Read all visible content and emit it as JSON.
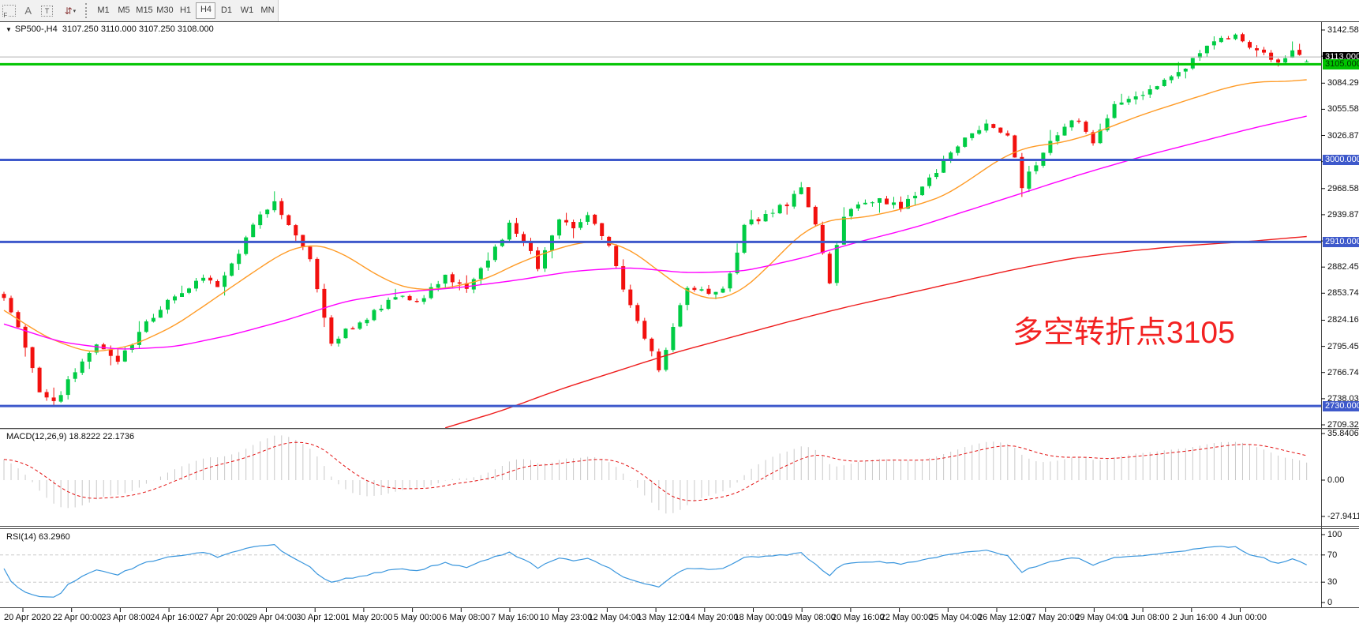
{
  "toolbar": {
    "tools": [
      {
        "name": "fibo-tool",
        "glyph": "F"
      },
      {
        "name": "text-tool",
        "glyph": "A"
      },
      {
        "name": "text-label-tool",
        "glyph": "T"
      },
      {
        "name": "arrows-tool",
        "glyph": "⇵"
      }
    ],
    "timeframes": [
      "M1",
      "M5",
      "M15",
      "M30",
      "H1",
      "H4",
      "D1",
      "W1",
      "MN"
    ],
    "active_timeframe": "H4"
  },
  "header": {
    "symbol": "SP500-,H4",
    "open": "3107.250",
    "high": "3110.000",
    "low": "3107.250",
    "close": "3108.000"
  },
  "annotation": {
    "text": "多空转折点3105",
    "color": "#f32222"
  },
  "price_axis": {
    "labels": [
      "3142.580",
      "3113.870",
      "3084.290",
      "3055.580",
      "3026.870",
      "2998.160",
      "2968.580",
      "2939.870",
      "2911.160",
      "2882.450",
      "2853.740",
      "2824.160",
      "2795.450",
      "2766.740",
      "2738.030",
      "2709.320"
    ],
    "top_label_value": 3142.58,
    "bottom_label_value": 2709.32
  },
  "hlines": [
    {
      "name": "bid-line",
      "price": 3113.0,
      "label": "3113.000",
      "line_color": "#b3b3b3",
      "line_width": 1,
      "tag_bg": "#000000",
      "tag_fg": "#ffffff"
    },
    {
      "name": "green-level",
      "price": 3105.0,
      "label": "3105.000",
      "line_color": "#00c400",
      "line_width": 3,
      "tag_bg": "#00c400",
      "tag_fg": "#003300"
    },
    {
      "name": "blue-level-3000",
      "price": 3000.0,
      "label": "3000.000",
      "line_color": "#3e59cb",
      "line_width": 3,
      "tag_bg": "#3e59cb",
      "tag_fg": "#ffffff"
    },
    {
      "name": "blue-level-2910",
      "price": 2910.0,
      "label": "2910.000",
      "line_color": "#3e59cb",
      "line_width": 3,
      "tag_bg": "#3e59cb",
      "tag_fg": "#ffffff"
    },
    {
      "name": "blue-level-2730",
      "price": 2730.0,
      "label": "2730.000",
      "line_color": "#3e59cb",
      "line_width": 3,
      "tag_bg": "#3e59cb",
      "tag_fg": "#ffffff"
    }
  ],
  "macd_panel": {
    "title": "MACD(12,26,9)",
    "values": "18.8222 22.1736",
    "axis_labels": [
      "35.8406",
      "0.00",
      "-27.9411"
    ],
    "ylim": [
      -27.9411,
      35.8406
    ],
    "hist_color": "#c9c9c9",
    "signal_color": "#e31212"
  },
  "rsi_panel": {
    "title": "RSI(14)",
    "value": "63.2960",
    "axis_labels": [
      "100",
      "70",
      "30",
      "0"
    ],
    "levels": [
      70,
      30
    ],
    "ylim": [
      0,
      100
    ],
    "line_color": "#3a96dd",
    "level_color": "#c8c8c8"
  },
  "time_axis": {
    "labels": [
      "20 Apr 2020",
      "22 Apr 00:00",
      "23 Apr 08:00",
      "24 Apr 16:00",
      "27 Apr 20:00",
      "29 Apr 04:00",
      "30 Apr 12:00",
      "1 May 20:00",
      "5 May 00:00",
      "6 May 08:00",
      "7 May 16:00",
      "10 May 23:00",
      "12 May 04:00",
      "13 May 12:00",
      "14 May 20:00",
      "18 May 00:00",
      "19 May 08:00",
      "20 May 16:00",
      "22 May 00:00",
      "25 May 04:00",
      "26 May 12:00",
      "27 May 20:00",
      "29 May 04:00",
      "1 Jun 08:00",
      "2 Jun 16:00",
      "4 Jun 00:00"
    ]
  },
  "chart_data": {
    "type": "candlestick",
    "symbol": "SP500-",
    "timeframe": "H4",
    "bars": 184,
    "ylim": [
      2706,
      3151
    ],
    "last_bar": {
      "open": 3107.25,
      "high": 3110.0,
      "low": 3107.25,
      "close": 3108.0
    },
    "up_color": "#00cc44",
    "down_color": "#f2100e",
    "close_keypoints": [
      [
        0,
        2848
      ],
      [
        2,
        2815
      ],
      [
        5,
        2745
      ],
      [
        7,
        2733
      ],
      [
        10,
        2770
      ],
      [
        13,
        2798
      ],
      [
        16,
        2778
      ],
      [
        20,
        2822
      ],
      [
        24,
        2852
      ],
      [
        28,
        2872
      ],
      [
        30,
        2858
      ],
      [
        33,
        2900
      ],
      [
        36,
        2940
      ],
      [
        38,
        2952
      ],
      [
        40,
        2930
      ],
      [
        43,
        2890
      ],
      [
        46,
        2800
      ],
      [
        48,
        2812
      ],
      [
        51,
        2826
      ],
      [
        55,
        2852
      ],
      [
        58,
        2842
      ],
      [
        62,
        2872
      ],
      [
        65,
        2858
      ],
      [
        68,
        2888
      ],
      [
        71,
        2928
      ],
      [
        73,
        2912
      ],
      [
        75,
        2882
      ],
      [
        78,
        2938
      ],
      [
        80,
        2922
      ],
      [
        82,
        2938
      ],
      [
        85,
        2905
      ],
      [
        88,
        2838
      ],
      [
        90,
        2805
      ],
      [
        92,
        2772
      ],
      [
        94,
        2818
      ],
      [
        96,
        2862
      ],
      [
        98,
        2858
      ],
      [
        100,
        2852
      ],
      [
        102,
        2872
      ],
      [
        104,
        2928
      ],
      [
        107,
        2940
      ],
      [
        110,
        2952
      ],
      [
        112,
        2968
      ],
      [
        114,
        2930
      ],
      [
        116,
        2868
      ],
      [
        118,
        2940
      ],
      [
        121,
        2952
      ],
      [
        123,
        2958
      ],
      [
        126,
        2946
      ],
      [
        128,
        2962
      ],
      [
        130,
        2978
      ],
      [
        133,
        3008
      ],
      [
        136,
        3030
      ],
      [
        138,
        3042
      ],
      [
        141,
        3028
      ],
      [
        143,
        2972
      ],
      [
        146,
        3010
      ],
      [
        149,
        3038
      ],
      [
        151,
        3045
      ],
      [
        153,
        3020
      ],
      [
        156,
        3058
      ],
      [
        159,
        3070
      ],
      [
        162,
        3082
      ],
      [
        164,
        3092
      ],
      [
        166,
        3102
      ],
      [
        168,
        3120
      ],
      [
        171,
        3132
      ],
      [
        173,
        3138
      ],
      [
        175,
        3122
      ],
      [
        177,
        3116
      ],
      [
        179,
        3110
      ],
      [
        181,
        3118
      ],
      [
        183,
        3108
      ]
    ],
    "overlays": [
      {
        "name": "ma-fast",
        "color": "#ff9b26",
        "keypoints": [
          [
            0,
            2835
          ],
          [
            6,
            2805
          ],
          [
            12,
            2788
          ],
          [
            18,
            2796
          ],
          [
            24,
            2818
          ],
          [
            30,
            2850
          ],
          [
            36,
            2882
          ],
          [
            40,
            2902
          ],
          [
            44,
            2908
          ],
          [
            48,
            2896
          ],
          [
            52,
            2875
          ],
          [
            56,
            2860
          ],
          [
            60,
            2857
          ],
          [
            64,
            2862
          ],
          [
            68,
            2870
          ],
          [
            72,
            2886
          ],
          [
            76,
            2898
          ],
          [
            80,
            2908
          ],
          [
            84,
            2912
          ],
          [
            88,
            2902
          ],
          [
            92,
            2878
          ],
          [
            96,
            2855
          ],
          [
            100,
            2845
          ],
          [
            104,
            2858
          ],
          [
            108,
            2888
          ],
          [
            112,
            2920
          ],
          [
            116,
            2935
          ],
          [
            120,
            2936
          ],
          [
            124,
            2942
          ],
          [
            128,
            2950
          ],
          [
            132,
            2960
          ],
          [
            136,
            2980
          ],
          [
            140,
            3002
          ],
          [
            144,
            3015
          ],
          [
            148,
            3018
          ],
          [
            152,
            3026
          ],
          [
            156,
            3038
          ],
          [
            160,
            3050
          ],
          [
            164,
            3060
          ],
          [
            168,
            3070
          ],
          [
            172,
            3080
          ],
          [
            176,
            3086
          ],
          [
            180,
            3086
          ],
          [
            183,
            3088
          ]
        ]
      },
      {
        "name": "ma-mid",
        "color": "#ff00ff",
        "keypoints": [
          [
            0,
            2820
          ],
          [
            8,
            2800
          ],
          [
            16,
            2792
          ],
          [
            24,
            2795
          ],
          [
            32,
            2808
          ],
          [
            40,
            2825
          ],
          [
            48,
            2845
          ],
          [
            56,
            2855
          ],
          [
            64,
            2860
          ],
          [
            72,
            2868
          ],
          [
            80,
            2878
          ],
          [
            88,
            2882
          ],
          [
            96,
            2876
          ],
          [
            104,
            2878
          ],
          [
            112,
            2892
          ],
          [
            120,
            2910
          ],
          [
            128,
            2926
          ],
          [
            136,
            2946
          ],
          [
            144,
            2966
          ],
          [
            152,
            2986
          ],
          [
            160,
            3004
          ],
          [
            168,
            3020
          ],
          [
            176,
            3036
          ],
          [
            183,
            3048
          ]
        ]
      },
      {
        "name": "ma-slow",
        "color": "#ee1c1c",
        "keypoints": [
          [
            62,
            2706
          ],
          [
            70,
            2725
          ],
          [
            78,
            2748
          ],
          [
            86,
            2768
          ],
          [
            94,
            2788
          ],
          [
            102,
            2805
          ],
          [
            110,
            2822
          ],
          [
            118,
            2838
          ],
          [
            126,
            2852
          ],
          [
            134,
            2866
          ],
          [
            142,
            2880
          ],
          [
            150,
            2892
          ],
          [
            158,
            2900
          ],
          [
            166,
            2906
          ],
          [
            174,
            2910
          ],
          [
            183,
            2916
          ]
        ]
      }
    ],
    "indicators": [
      {
        "name": "MACD",
        "params": [
          12,
          26,
          9
        ],
        "current": [
          18.8222,
          22.1736
        ]
      },
      {
        "name": "RSI",
        "params": [
          14
        ],
        "current": 63.296
      }
    ]
  }
}
